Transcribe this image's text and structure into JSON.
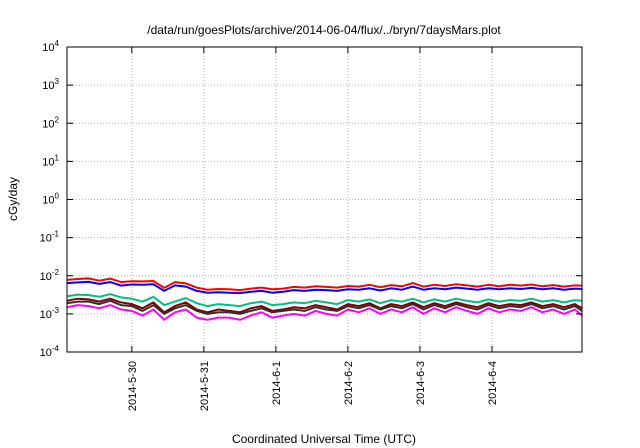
{
  "chart_data": {
    "type": "line",
    "title": "/data/run/goesPlots/archive/2014-06-04/flux/../bryn/7daysMars.plot",
    "xlabel": "Coordinated Universal Time (UTC)",
    "ylabel": "cGy/day",
    "yscale": "log",
    "ylim": [
      0.0001,
      10000
    ],
    "xlim": [
      -0.9,
      6.25
    ],
    "y_ticks": [
      {
        "value": 0.0001,
        "base": "10",
        "exp": "-4"
      },
      {
        "value": 0.001,
        "base": "10",
        "exp": "-3"
      },
      {
        "value": 0.01,
        "base": "10",
        "exp": "-2"
      },
      {
        "value": 0.1,
        "base": "10",
        "exp": "-1"
      },
      {
        "value": 1,
        "base": "10",
        "exp": "0"
      },
      {
        "value": 10,
        "base": "10",
        "exp": "1"
      },
      {
        "value": 100,
        "base": "10",
        "exp": "2"
      },
      {
        "value": 1000,
        "base": "10",
        "exp": "3"
      },
      {
        "value": 10000,
        "base": "10",
        "exp": "4"
      }
    ],
    "x_ticks": [
      {
        "value": 0,
        "label": "2014-5-30"
      },
      {
        "value": 1,
        "label": "2014-5-31"
      },
      {
        "value": 2,
        "label": "2014-6-1"
      },
      {
        "value": 3,
        "label": "2014-6-2"
      },
      {
        "value": 4,
        "label": "2014-6-3"
      },
      {
        "value": 5,
        "label": "2014-6-4"
      }
    ],
    "grid": true,
    "legend": "none",
    "x": [
      -0.9,
      -0.75,
      -0.6,
      -0.45,
      -0.3,
      -0.15,
      0,
      0.15,
      0.3,
      0.45,
      0.6,
      0.75,
      0.9,
      1.05,
      1.2,
      1.35,
      1.5,
      1.65,
      1.8,
      1.95,
      2.1,
      2.25,
      2.4,
      2.55,
      2.7,
      2.85,
      3,
      3.15,
      3.3,
      3.45,
      3.6,
      3.75,
      3.9,
      4.05,
      4.2,
      4.35,
      4.5,
      4.65,
      4.8,
      4.95,
      5.1,
      5.25,
      5.4,
      5.55,
      5.7,
      5.85,
      6,
      6.15,
      6.25
    ],
    "series": [
      {
        "color": "#ff0000",
        "values": [
          0.0078,
          0.0082,
          0.0085,
          0.0074,
          0.0084,
          0.0068,
          0.0072,
          0.0071,
          0.0073,
          0.0048,
          0.0068,
          0.0063,
          0.0049,
          0.0043,
          0.0045,
          0.0044,
          0.0042,
          0.0046,
          0.0049,
          0.0044,
          0.0046,
          0.0051,
          0.0049,
          0.0053,
          0.0051,
          0.0049,
          0.0054,
          0.0052,
          0.0058,
          0.005,
          0.0057,
          0.0053,
          0.0064,
          0.0052,
          0.0058,
          0.0054,
          0.006,
          0.0056,
          0.0052,
          0.0058,
          0.0053,
          0.0058,
          0.0055,
          0.0059,
          0.0053,
          0.0057,
          0.0052,
          0.0056,
          0.0055
        ]
      },
      {
        "color": "#0000ff",
        "values": [
          0.0064,
          0.0067,
          0.0069,
          0.0061,
          0.0068,
          0.0055,
          0.0059,
          0.0058,
          0.006,
          0.004,
          0.0056,
          0.0052,
          0.004,
          0.0036,
          0.0037,
          0.0036,
          0.0035,
          0.0038,
          0.004,
          0.0036,
          0.0038,
          0.0042,
          0.004,
          0.0043,
          0.0042,
          0.004,
          0.0044,
          0.0043,
          0.0047,
          0.0041,
          0.0047,
          0.0043,
          0.0052,
          0.0043,
          0.0047,
          0.0044,
          0.0049,
          0.0046,
          0.0043,
          0.0047,
          0.0044,
          0.0047,
          0.0045,
          0.0048,
          0.0044,
          0.0047,
          0.0043,
          0.0046,
          0.0045
        ]
      },
      {
        "color": "#00c080",
        "values": [
          0.0029,
          0.0032,
          0.0031,
          0.0028,
          0.0033,
          0.0027,
          0.0025,
          0.0021,
          0.0028,
          0.0017,
          0.0021,
          0.0026,
          0.0019,
          0.0016,
          0.0018,
          0.0017,
          0.0016,
          0.0019,
          0.0021,
          0.0017,
          0.0018,
          0.002,
          0.0019,
          0.0022,
          0.002,
          0.0018,
          0.0023,
          0.0021,
          0.0024,
          0.0019,
          0.0023,
          0.0021,
          0.0025,
          0.002,
          0.0024,
          0.0021,
          0.0025,
          0.0022,
          0.002,
          0.0024,
          0.0021,
          0.0023,
          0.0022,
          0.0025,
          0.0021,
          0.0023,
          0.002,
          0.0023,
          0.0022
        ]
      },
      {
        "color": "#800000",
        "values": [
          0.0022,
          0.0025,
          0.0024,
          0.0021,
          0.0025,
          0.002,
          0.0018,
          0.0014,
          0.002,
          0.0011,
          0.0016,
          0.002,
          0.0013,
          0.0011,
          0.0013,
          0.0012,
          0.0011,
          0.0014,
          0.0016,
          0.0012,
          0.0013,
          0.0015,
          0.0014,
          0.0017,
          0.0015,
          0.0013,
          0.0018,
          0.0016,
          0.0019,
          0.0014,
          0.0018,
          0.0016,
          0.002,
          0.0015,
          0.0019,
          0.0016,
          0.002,
          0.0017,
          0.0015,
          0.0019,
          0.0016,
          0.0018,
          0.0017,
          0.002,
          0.0016,
          0.0018,
          0.0015,
          0.0018,
          0.0014
        ]
      },
      {
        "color": "#303030",
        "values": [
          0.0019,
          0.0021,
          0.0021,
          0.0018,
          0.0022,
          0.0017,
          0.0016,
          0.0012,
          0.0017,
          0.001,
          0.0014,
          0.0017,
          0.0012,
          0.001,
          0.0011,
          0.0011,
          0.001,
          0.0012,
          0.0014,
          0.0011,
          0.0012,
          0.0013,
          0.0012,
          0.0015,
          0.0013,
          0.0012,
          0.0016,
          0.0014,
          0.0017,
          0.0013,
          0.0016,
          0.0014,
          0.0018,
          0.0013,
          0.0017,
          0.0014,
          0.0018,
          0.0015,
          0.0013,
          0.0017,
          0.0014,
          0.0016,
          0.0015,
          0.0018,
          0.0014,
          0.0016,
          0.0013,
          0.0016,
          0.0012
        ]
      },
      {
        "color": "#ff00ff",
        "values": [
          0.0015,
          0.0017,
          0.0016,
          0.0014,
          0.0017,
          0.0013,
          0.0012,
          0.0009,
          0.0013,
          0.0007,
          0.0011,
          0.0013,
          0.0008,
          0.0007,
          0.0008,
          0.0008,
          0.0007,
          0.0009,
          0.0011,
          0.0008,
          0.0009,
          0.001,
          0.0009,
          0.0012,
          0.001,
          0.0009,
          0.0013,
          0.0011,
          0.0014,
          0.001,
          0.0013,
          0.0011,
          0.0015,
          0.001,
          0.0014,
          0.0011,
          0.0015,
          0.0012,
          0.001,
          0.0014,
          0.0011,
          0.0013,
          0.0012,
          0.0015,
          0.0011,
          0.0013,
          0.001,
          0.0013,
          0.0009
        ]
      }
    ]
  }
}
